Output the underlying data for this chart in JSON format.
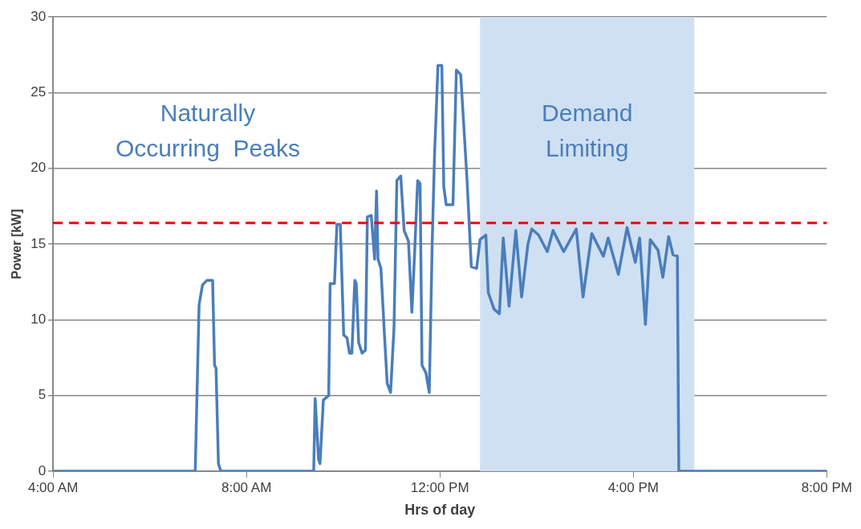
{
  "chart_data": {
    "type": "line",
    "xlabel": "Hrs of day",
    "ylabel": "Power [kW]",
    "xlim": [
      4,
      20
    ],
    "xticks": [
      {
        "value": 4,
        "label": "4:00 AM"
      },
      {
        "value": 8,
        "label": "8:00 AM"
      },
      {
        "value": 12,
        "label": "12:00 PM"
      },
      {
        "value": 16,
        "label": "4:00 PM"
      },
      {
        "value": 20,
        "label": "8:00 PM"
      }
    ],
    "ylim": [
      0,
      30
    ],
    "yticks": [
      0,
      5,
      10,
      15,
      20,
      25,
      30
    ],
    "grid": "y",
    "legend": false,
    "marker": "none",
    "line_style": "solid",
    "series": [
      {
        "color": "#4a7ebb",
        "x": [
          4,
          6.94,
          7.02,
          7.09,
          7.18,
          7.3,
          7.34,
          7.37,
          7.42,
          7.47,
          9.39,
          9.42,
          9.49,
          9.52,
          9.59,
          9.7,
          9.73,
          9.82,
          9.87,
          9.94,
          10.01,
          10.08,
          10.13,
          10.18,
          10.24,
          10.27,
          10.32,
          10.39,
          10.46,
          10.5,
          10.58,
          10.65,
          10.69,
          10.72,
          10.78,
          10.85,
          10.91,
          10.98,
          11.05,
          11.11,
          11.19,
          11.26,
          11.35,
          11.42,
          11.47,
          11.54,
          11.59,
          11.63,
          11.71,
          11.78,
          11.84,
          11.89,
          11.96,
          12.04,
          12.08,
          12.13,
          12.27,
          12.34,
          12.43,
          12.56,
          12.65,
          12.76,
          12.83,
          12.95,
          13,
          13.12,
          13.23,
          13.31,
          13.43,
          13.57,
          13.69,
          13.82,
          13.9,
          14.04,
          14.22,
          14.34,
          14.56,
          14.68,
          14.82,
          14.96,
          15.14,
          15.38,
          15.48,
          15.69,
          15.87,
          16.04,
          16.13,
          16.25,
          16.35,
          16.51,
          16.61,
          16.73,
          16.82,
          16.91,
          16.94,
          20
        ],
        "values": [
          0,
          0,
          11,
          12.3,
          12.6,
          12.6,
          7,
          6.8,
          0.5,
          0,
          0,
          4.8,
          0.8,
          0.5,
          4.7,
          5,
          12.4,
          12.4,
          16.3,
          16.3,
          9,
          8.8,
          7.8,
          7.8,
          12.6,
          12.4,
          8.5,
          7.8,
          8,
          16.8,
          16.9,
          14,
          18.5,
          14,
          13.4,
          9.2,
          5.8,
          5.2,
          9.4,
          19.2,
          19.5,
          15.9,
          15.2,
          10.5,
          13.9,
          19.2,
          19,
          7,
          6.5,
          5.2,
          15,
          21,
          26.8,
          26.8,
          18.8,
          17.6,
          17.6,
          26.5,
          26.2,
          19.3,
          13.5,
          13.4,
          15.3,
          15.6,
          11.8,
          10.7,
          10.4,
          15.4,
          10.9,
          15.9,
          11.5,
          15,
          16,
          15.6,
          14.5,
          15.9,
          14.5,
          15.2,
          16,
          11.5,
          15.7,
          14.2,
          15.4,
          13,
          16.1,
          13.8,
          15.4,
          9.7,
          15.3,
          14.6,
          12.8,
          15.5,
          14.3,
          14.2,
          0,
          0
        ]
      }
    ],
    "ref_lines": [
      {
        "axis": "y",
        "value": 16.4,
        "color": "#ff0000",
        "line_style": "dashed"
      }
    ],
    "bands": [
      {
        "axis": "x",
        "from": 12.83,
        "to": 17.26,
        "label": "Demand\nLimiting",
        "color": "#cfe0f2"
      }
    ],
    "annotations": [
      "Naturally\nOccurring  Peaks"
    ]
  }
}
